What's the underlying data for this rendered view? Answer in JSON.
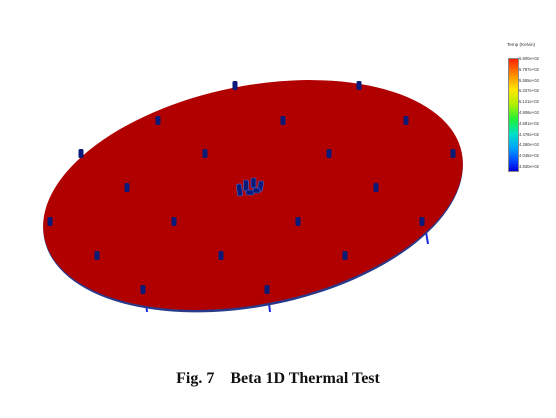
{
  "legend": {
    "title": "Temp (Kelvin)",
    "ticks": [
      "5.900e+02",
      "5.787e+02",
      "5.555e+02",
      "5.337e+02",
      "5.121e+02",
      "4.906e+02",
      "4.691e+02",
      "4.476e+02",
      "4.260e+02",
      "4.045e+02",
      "3.830e+02"
    ],
    "colors": {
      "max": "#ff2000",
      "min": "#0000d8"
    }
  },
  "plate": {
    "color": "#b00000",
    "edge_color": "#2a3a8a",
    "sensor_color": "#0a1a78"
  },
  "caption": {
    "label": "Fig. 7",
    "title": "Beta 1D Thermal Test"
  }
}
